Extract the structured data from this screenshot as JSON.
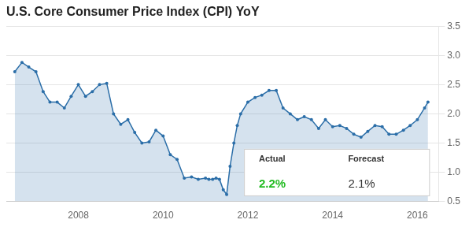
{
  "chart_data": {
    "type": "area",
    "title": "U.S. Core Consumer Price Index (CPI) YoY",
    "x": [
      2006.5,
      2006.67,
      2006.83,
      2007.0,
      2007.17,
      2007.33,
      2007.5,
      2007.67,
      2007.83,
      2008.0,
      2008.17,
      2008.33,
      2008.5,
      2008.67,
      2008.83,
      2009.0,
      2009.17,
      2009.33,
      2009.5,
      2009.67,
      2009.83,
      2010.0,
      2010.17,
      2010.33,
      2010.5,
      2010.67,
      2010.83,
      2011.0,
      2011.08,
      2011.17,
      2011.25,
      2011.33,
      2011.42,
      2011.5,
      2011.58,
      2011.67,
      2011.75,
      2011.83,
      2012.0,
      2012.17,
      2012.33,
      2012.5,
      2012.67,
      2012.83,
      2013.0,
      2013.17,
      2013.33,
      2013.5,
      2013.67,
      2013.83,
      2014.0,
      2014.17,
      2014.33,
      2014.5,
      2014.67,
      2014.83,
      2015.0,
      2015.17,
      2015.33,
      2015.5,
      2015.67,
      2015.83,
      2016.0,
      2016.17,
      2016.25
    ],
    "values": [
      2.72,
      2.88,
      2.8,
      2.72,
      2.38,
      2.2,
      2.2,
      2.1,
      2.3,
      2.5,
      2.3,
      2.38,
      2.5,
      2.52,
      2.0,
      1.82,
      1.9,
      1.68,
      1.5,
      1.52,
      1.72,
      1.62,
      1.3,
      1.22,
      0.9,
      0.92,
      0.88,
      0.9,
      0.88,
      0.88,
      0.9,
      0.88,
      0.7,
      0.62,
      1.1,
      1.5,
      1.8,
      2.0,
      2.2,
      2.28,
      2.32,
      2.4,
      2.4,
      2.1,
      2.0,
      1.9,
      1.95,
      1.9,
      1.75,
      1.9,
      1.78,
      1.8,
      1.75,
      1.65,
      1.6,
      1.7,
      1.8,
      1.78,
      1.65,
      1.65,
      1.72,
      1.8,
      1.9,
      2.1,
      2.2
    ],
    "color": "#2b6ea8",
    "marker": "circle",
    "xlim": [
      2006.3,
      2016.5
    ],
    "xticks": [
      2008,
      2010,
      2012,
      2014,
      2016
    ],
    "ylim": [
      0.5,
      3.5
    ],
    "yticks": [
      0.5,
      {
        "value": 1.0,
        "label": "1.0"
      },
      1.5,
      {
        "value": 2.0,
        "label": "2.0"
      },
      2.5,
      {
        "value": 3.0,
        "label": "3.0"
      },
      3.5
    ],
    "grid": true,
    "annotations": [
      {
        "text": "Actual"
      },
      {
        "text": "Forecast"
      },
      {
        "text": "2.2%",
        "color": "#22bb22"
      },
      {
        "text": "2.1%"
      }
    ]
  }
}
